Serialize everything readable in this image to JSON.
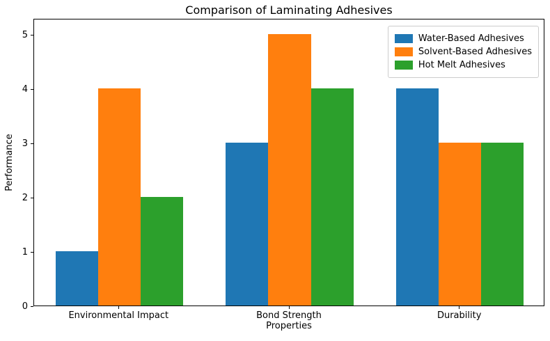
{
  "chart_data": {
    "type": "bar",
    "title": "Comparison of Laminating Adhesives",
    "xlabel": "Properties",
    "ylabel": "Performance",
    "categories": [
      "Environmental Impact",
      "Bond Strength",
      "Durability"
    ],
    "series": [
      {
        "name": "Water-Based Adhesives",
        "color": "#1f77b4",
        "values": [
          1,
          3,
          4
        ]
      },
      {
        "name": "Solvent-Based Adhesives",
        "color": "#ff7f0e",
        "values": [
          4,
          5,
          3
        ]
      },
      {
        "name": "Hot Melt Adhesives",
        "color": "#2ca02c",
        "values": [
          2,
          4,
          3
        ]
      }
    ],
    "ylim": [
      0,
      5.3
    ],
    "yticks": [
      0,
      1,
      2,
      3,
      4,
      5
    ],
    "xlim": [
      -0.5,
      2.5
    ],
    "bar_width": 0.25,
    "grid": false,
    "legend_position": "upper right",
    "axis_color": "#000000",
    "background_color": "#ffffff"
  }
}
